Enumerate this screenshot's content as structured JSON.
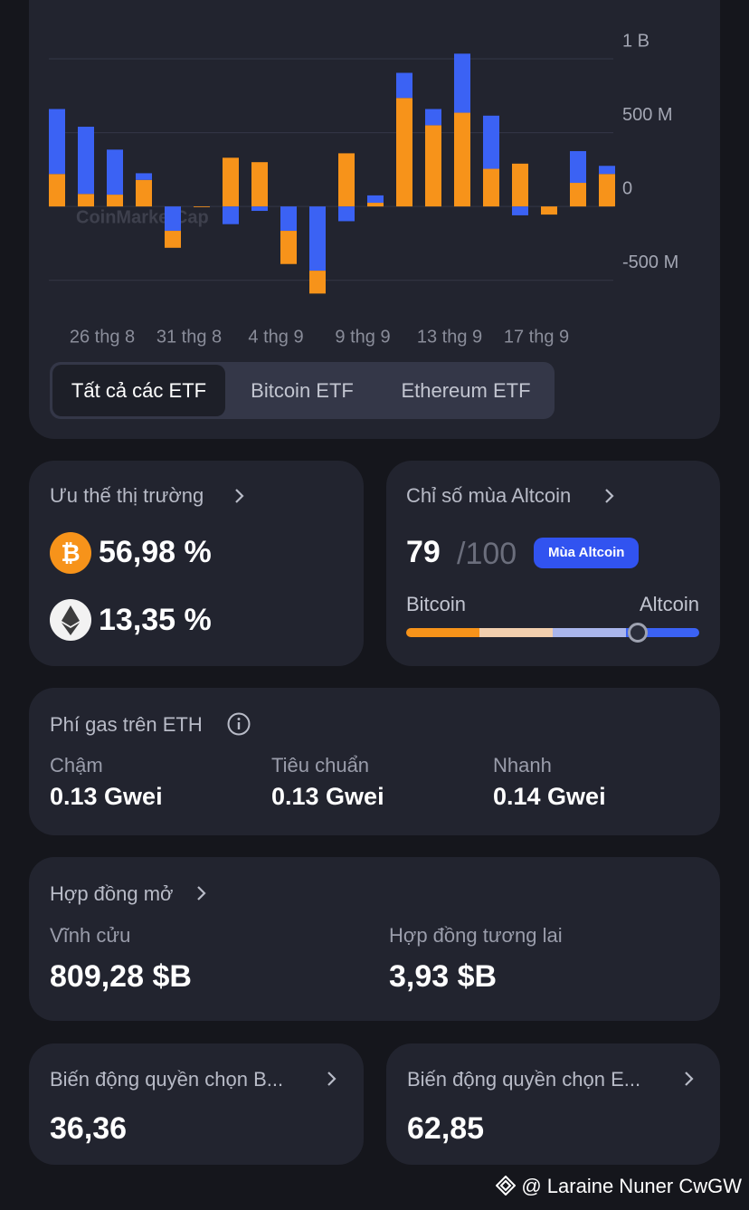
{
  "chart_data": {
    "type": "bar",
    "watermark": "CoinMarketCap",
    "categories": [
      null,
      null,
      "26 thg 8",
      null,
      null,
      "31 thg 8",
      null,
      null,
      "4 thg 9",
      null,
      null,
      "9 thg 9",
      null,
      null,
      "13 thg 9",
      null,
      null,
      "17 thg 9",
      null,
      null
    ],
    "series": [
      {
        "color": "#f7931a",
        "values": [
          220,
          85,
          80,
          180,
          -115,
          -5,
          330,
          300,
          -225,
          -155,
          360,
          25,
          735,
          550,
          635,
          255,
          290,
          -55,
          160,
          220
        ]
      },
      {
        "color": "#3b62f4",
        "values": [
          440,
          455,
          305,
          45,
          -165,
          0,
          -120,
          -30,
          -165,
          -435,
          -100,
          50,
          170,
          110,
          400,
          360,
          -60,
          0,
          215,
          55
        ]
      }
    ],
    "ylim": [
      -600,
      1000
    ],
    "yticks": [
      {
        "value": 1000,
        "label": "1 B"
      },
      {
        "value": 500,
        "label": "500 M"
      },
      0,
      {
        "value": -500,
        "label": "-500 M"
      }
    ],
    "grid": true
  },
  "tabs": {
    "items": [
      "Tất cả các ETF",
      "Bitcoin ETF",
      "Ethereum ETF"
    ],
    "active": 0
  },
  "dominance": {
    "title": "Ưu thế thị trường",
    "items": [
      "56,98 %",
      "13,35 %"
    ]
  },
  "altcoin": {
    "title": "Chỉ số mùa Altcoin",
    "score": 79,
    "max_label": "/100",
    "badge": "Mùa Altcoin",
    "left": "Bitcoin",
    "right": "Altcoin"
  },
  "gas": {
    "title": "Phí gas trên ETH",
    "items": [
      {
        "label": "Chậm",
        "value": "0.13 Gwei"
      },
      {
        "label": "Tiêu chuẩn",
        "value": "0.13 Gwei"
      },
      {
        "label": "Nhanh",
        "value": "0.14 Gwei"
      }
    ]
  },
  "open_interest": {
    "title": "Hợp đồng mở",
    "items": [
      {
        "label": "Vĩnh cửu",
        "value": "809,28 $B"
      },
      {
        "label": "Hợp đồng tương lai",
        "value": "3,93 $B"
      }
    ]
  },
  "options": [
    {
      "title": "Biến động quyền chọn B...",
      "value": "36,36"
    },
    {
      "title": "Biến động quyền chọn E...",
      "value": "62,85"
    }
  ],
  "credit": "@ Laraine Nuner CwGW"
}
